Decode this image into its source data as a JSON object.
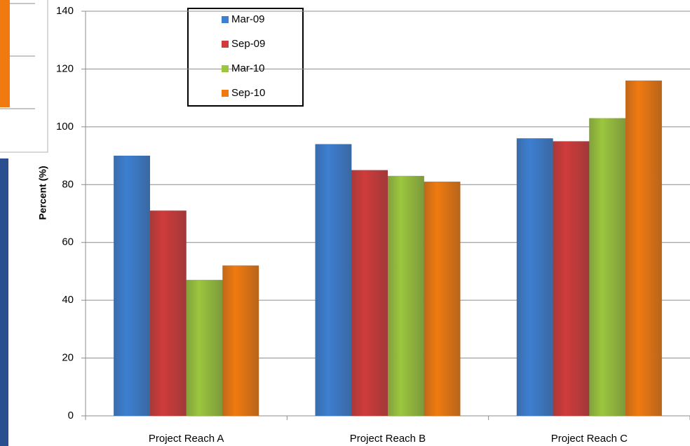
{
  "chart_data": {
    "type": "bar",
    "y_label": "Percent (%)",
    "categories": [
      "Project Reach A",
      "Project Reach B",
      "Project Reach C"
    ],
    "series": [
      {
        "name": "Mar-09",
        "color": "#3d7fd2",
        "values": [
          90,
          94,
          96
        ]
      },
      {
        "name": "Sep-09",
        "color": "#d03b3b",
        "values": [
          71,
          85,
          95
        ]
      },
      {
        "name": "Mar-10",
        "color": "#9cc63e",
        "values": [
          47,
          83,
          103
        ]
      },
      {
        "name": "Sep-10",
        "color": "#f07a10",
        "values": [
          52,
          81,
          116
        ]
      }
    ],
    "ylim": [
      0,
      140
    ],
    "yticks": [
      0,
      20,
      40,
      60,
      80,
      100,
      120,
      140
    ],
    "grid": true,
    "legend": "top-left"
  }
}
